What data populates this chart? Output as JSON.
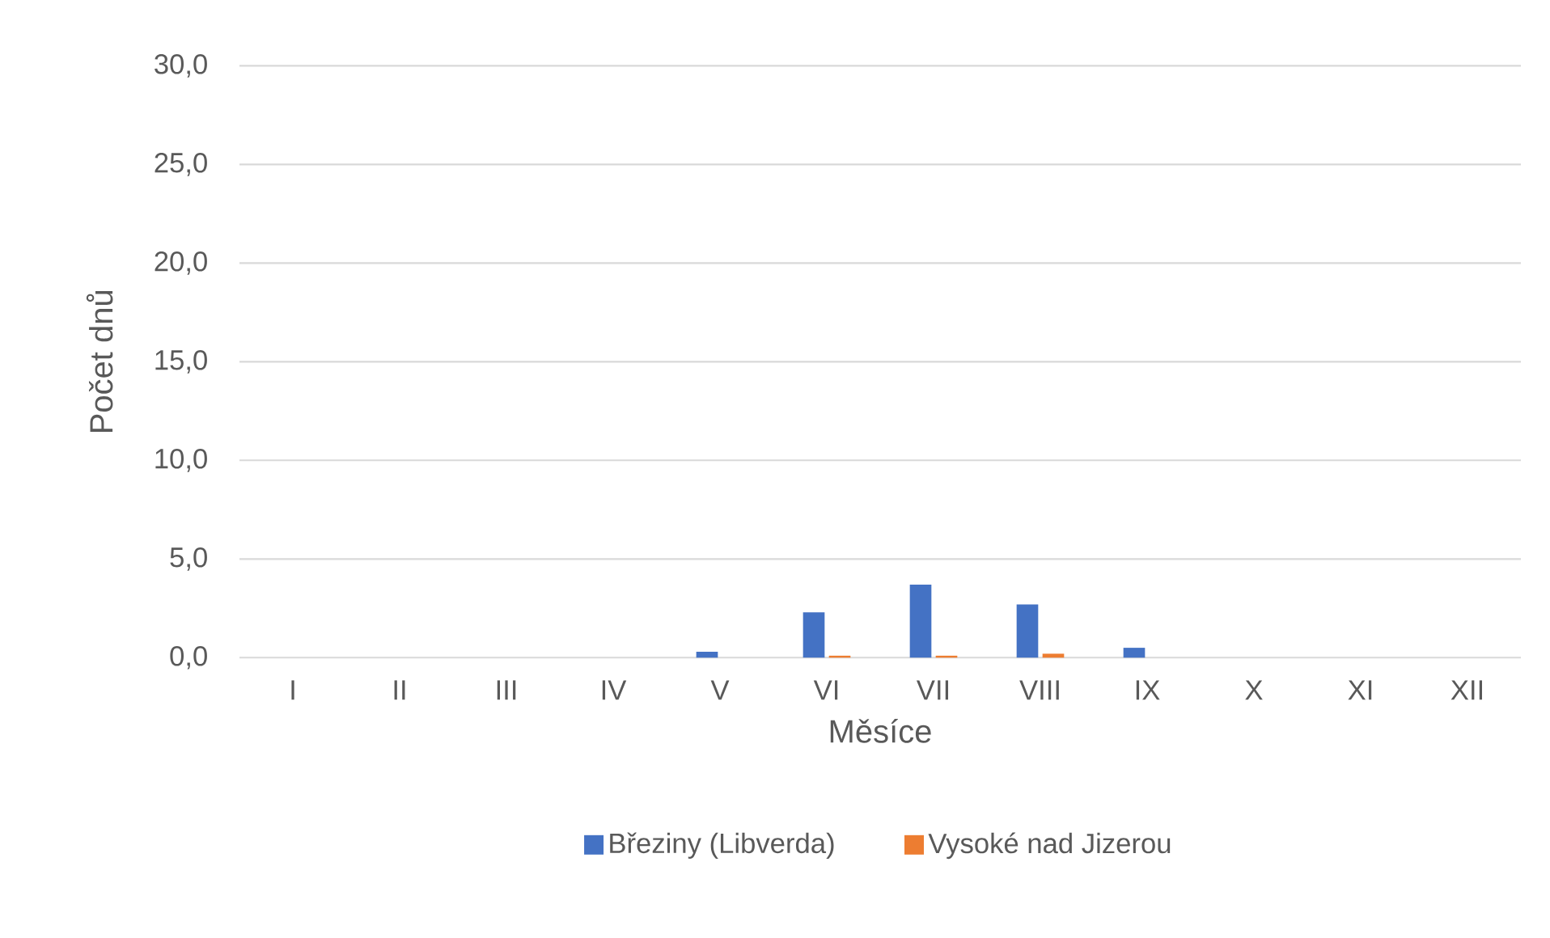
{
  "chart_data": {
    "type": "bar",
    "xlabel": "Měsíce",
    "ylabel": "Počet dnů",
    "categories": [
      "I",
      "II",
      "III",
      "IV",
      "V",
      "VI",
      "VII",
      "VIII",
      "IX",
      "X",
      "XI",
      "XII"
    ],
    "series": [
      {
        "name": "Březiny (Libverda)",
        "color": "#4472c4",
        "values": [
          0,
          0,
          0,
          0,
          0.3,
          2.3,
          3.7,
          2.7,
          0.5,
          0,
          0,
          0
        ]
      },
      {
        "name": "Vysoké nad Jizerou",
        "color": "#ed7d31",
        "values": [
          0,
          0,
          0,
          0,
          0,
          0.1,
          0.1,
          0.2,
          0,
          0,
          0,
          0
        ]
      }
    ],
    "ylim": [
      0,
      30
    ],
    "yticks": [
      {
        "value": 0,
        "label": "0,0"
      },
      {
        "value": 5,
        "label": "5,0"
      },
      {
        "value": 10,
        "label": "10,0"
      },
      {
        "value": 15,
        "label": "15,0"
      },
      {
        "value": 20,
        "label": "20,0"
      },
      {
        "value": 25,
        "label": "25,0"
      },
      {
        "value": 30,
        "label": "30,0"
      }
    ],
    "grid": "y",
    "legend": "bottom"
  }
}
